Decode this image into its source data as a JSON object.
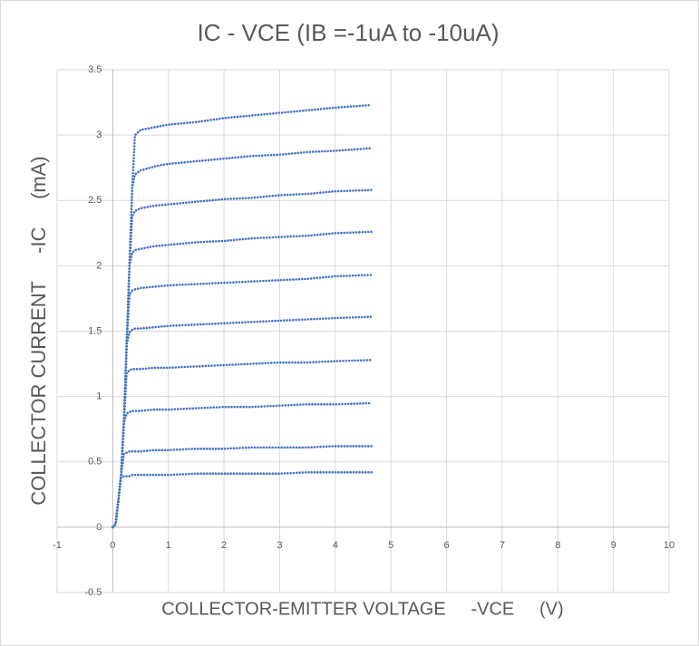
{
  "chart_data": {
    "type": "scatter",
    "title": "IC - VCE (IB =-1uA to -10uA)",
    "x_label": "COLLECTOR-EMITTER VOLTAGE     -VCE     (V)",
    "y_label": "COLLECTOR CURRENT     -IC     (mA)",
    "color": "#4472c4",
    "x": [
      0,
      0.05,
      0.1,
      0.15,
      0.2,
      0.25,
      0.3,
      0.35,
      0.4,
      0.5,
      0.75,
      1,
      1.5,
      2,
      2.5,
      3,
      3.5,
      4,
      4.65
    ],
    "series": [
      {
        "values": [
          0,
          0.02,
          0.2,
          0.38,
          0.39,
          0.39,
          0.39,
          0.4,
          0.4,
          0.4,
          0.4,
          0.4,
          0.41,
          0.41,
          0.41,
          0.41,
          0.42,
          0.42,
          0.42
        ]
      },
      {
        "values": [
          0,
          0.02,
          0.2,
          0.4,
          0.56,
          0.57,
          0.58,
          0.58,
          0.58,
          0.58,
          0.59,
          0.59,
          0.6,
          0.6,
          0.61,
          0.61,
          0.61,
          0.62,
          0.62
        ]
      },
      {
        "values": [
          0,
          0.02,
          0.2,
          0.4,
          0.8,
          0.87,
          0.88,
          0.89,
          0.89,
          0.89,
          0.9,
          0.9,
          0.91,
          0.92,
          0.92,
          0.93,
          0.94,
          0.94,
          0.95
        ]
      },
      {
        "values": [
          0,
          0.02,
          0.2,
          0.4,
          0.8,
          1.18,
          1.2,
          1.21,
          1.21,
          1.21,
          1.22,
          1.22,
          1.23,
          1.24,
          1.25,
          1.26,
          1.26,
          1.27,
          1.28
        ]
      },
      {
        "values": [
          0,
          0.02,
          0.2,
          0.4,
          0.8,
          1.4,
          1.49,
          1.51,
          1.52,
          1.52,
          1.53,
          1.54,
          1.55,
          1.56,
          1.57,
          1.58,
          1.59,
          1.6,
          1.61
        ]
      },
      {
        "values": [
          0,
          0.02,
          0.2,
          0.4,
          0.8,
          1.4,
          1.78,
          1.81,
          1.82,
          1.83,
          1.84,
          1.85,
          1.86,
          1.87,
          1.88,
          1.89,
          1.9,
          1.92,
          1.93
        ]
      },
      {
        "values": [
          0,
          0.02,
          0.2,
          0.4,
          0.8,
          1.4,
          2.0,
          2.1,
          2.12,
          2.13,
          2.15,
          2.16,
          2.18,
          2.19,
          2.21,
          2.22,
          2.23,
          2.25,
          2.26
        ]
      },
      {
        "values": [
          0,
          0.02,
          0.2,
          0.4,
          0.8,
          1.4,
          2.0,
          2.38,
          2.42,
          2.44,
          2.46,
          2.47,
          2.49,
          2.51,
          2.52,
          2.54,
          2.55,
          2.57,
          2.58
        ]
      },
      {
        "values": [
          0,
          0.02,
          0.2,
          0.4,
          0.8,
          1.4,
          2.0,
          2.6,
          2.7,
          2.73,
          2.76,
          2.78,
          2.8,
          2.82,
          2.84,
          2.85,
          2.87,
          2.88,
          2.9
        ]
      },
      {
        "values": [
          0,
          0.02,
          0.2,
          0.4,
          0.8,
          1.4,
          2.0,
          2.6,
          3.0,
          3.04,
          3.06,
          3.08,
          3.1,
          3.13,
          3.15,
          3.17,
          3.19,
          3.21,
          3.23
        ]
      }
    ],
    "xlim": [
      -1,
      10
    ],
    "xticks": [
      -1,
      0,
      1,
      2,
      3,
      4,
      5,
      6,
      7,
      8,
      9,
      10
    ],
    "ylim": [
      -0.5,
      3.5
    ],
    "yticks": [
      -0.5,
      0,
      0.5,
      1,
      1.5,
      2,
      2.5,
      3,
      3.5
    ],
    "grid": true
  }
}
